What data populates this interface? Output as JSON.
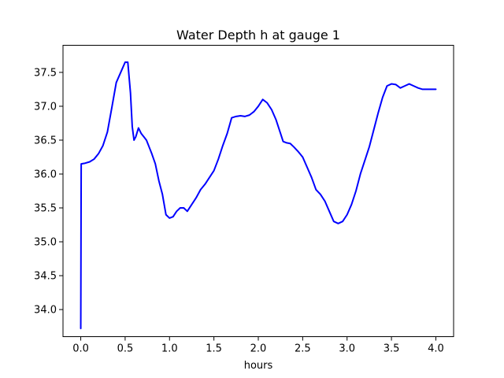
{
  "chart_data": {
    "type": "line",
    "title": "Water Depth h at gauge 1",
    "xlabel": "hours",
    "ylabel": "",
    "xlim": [
      -0.2,
      4.2
    ],
    "ylim": [
      33.6,
      37.9
    ],
    "xticks": [
      0.0,
      0.5,
      1.0,
      1.5,
      2.0,
      2.5,
      3.0,
      3.5,
      4.0
    ],
    "xtick_labels": [
      "0.0",
      "0.5",
      "1.0",
      "1.5",
      "2.0",
      "2.5",
      "3.0",
      "3.5",
      "4.0"
    ],
    "yticks": [
      34.0,
      34.5,
      35.0,
      35.5,
      36.0,
      36.5,
      37.0,
      37.5
    ],
    "ytick_labels": [
      "34.0",
      "34.5",
      "35.0",
      "35.5",
      "36.0",
      "36.5",
      "37.0",
      "37.5"
    ],
    "grid": false,
    "line_color": "#0000ff",
    "series": [
      {
        "x": [
          0.0,
          0.005,
          0.05,
          0.1,
          0.15,
          0.2,
          0.25,
          0.3,
          0.35,
          0.4,
          0.45,
          0.5,
          0.53,
          0.56,
          0.58,
          0.6,
          0.62,
          0.65,
          0.68,
          0.71,
          0.74,
          0.77,
          0.8,
          0.84,
          0.88,
          0.92,
          0.96,
          1.0,
          1.04,
          1.08,
          1.12,
          1.16,
          1.2,
          1.25,
          1.3,
          1.35,
          1.4,
          1.45,
          1.5,
          1.55,
          1.6,
          1.65,
          1.7,
          1.75,
          1.8,
          1.85,
          1.9,
          1.95,
          2.0,
          2.05,
          2.1,
          2.15,
          2.2,
          2.25,
          2.28,
          2.32,
          2.36,
          2.4,
          2.45,
          2.5,
          2.55,
          2.6,
          2.65,
          2.7,
          2.75,
          2.8,
          2.85,
          2.9,
          2.95,
          3.0,
          3.05,
          3.1,
          3.15,
          3.2,
          3.25,
          3.3,
          3.35,
          3.4,
          3.45,
          3.5,
          3.55,
          3.6,
          3.65,
          3.7,
          3.75,
          3.8,
          3.85,
          3.9,
          3.95,
          4.0
        ],
        "y": [
          33.72,
          36.15,
          36.16,
          36.18,
          36.22,
          36.3,
          36.42,
          36.62,
          36.98,
          37.35,
          37.5,
          37.65,
          37.65,
          37.2,
          36.7,
          36.5,
          36.55,
          36.68,
          36.6,
          36.55,
          36.5,
          36.4,
          36.3,
          36.15,
          35.9,
          35.7,
          35.4,
          35.35,
          35.37,
          35.45,
          35.5,
          35.5,
          35.45,
          35.55,
          35.65,
          35.77,
          35.85,
          35.95,
          36.05,
          36.22,
          36.42,
          36.6,
          36.83,
          36.85,
          36.86,
          36.85,
          36.87,
          36.92,
          37.0,
          37.1,
          37.05,
          36.95,
          36.8,
          36.6,
          36.48,
          36.46,
          36.45,
          36.4,
          36.33,
          36.25,
          36.1,
          35.95,
          35.77,
          35.7,
          35.6,
          35.45,
          35.3,
          35.27,
          35.3,
          35.4,
          35.55,
          35.75,
          36.0,
          36.2,
          36.4,
          36.65,
          36.9,
          37.13,
          37.3,
          37.33,
          37.32,
          37.27,
          37.3,
          37.33,
          37.3,
          37.27,
          37.25,
          37.25,
          37.25,
          37.25
        ]
      }
    ]
  }
}
